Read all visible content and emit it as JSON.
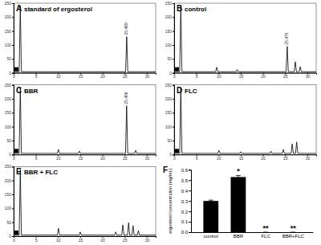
{
  "chart_data": [
    {
      "type": "line",
      "panel": "A",
      "title": "standard of ergosterol",
      "color": "#000000",
      "x": [
        0,
        1.25,
        1.5,
        1.75,
        25.22,
        25.469,
        25.72,
        32
      ],
      "values": [
        4,
        4,
        240,
        4,
        4,
        130,
        4,
        4
      ],
      "xlim": [
        0,
        32
      ],
      "xticks": [
        0,
        5,
        10,
        15,
        20,
        25,
        30
      ],
      "ylim": [
        0,
        250
      ],
      "yticks": [
        0,
        50,
        100,
        150,
        200,
        250
      ],
      "annotations": [
        {
          "text": "25.469",
          "x": 25.469,
          "y": 130
        }
      ]
    },
    {
      "type": "line",
      "panel": "B",
      "title": "control",
      "color": "#000000",
      "x": [
        0,
        1.25,
        1.5,
        1.75,
        9.35,
        9.6,
        9.85,
        13.95,
        14.2,
        14.45,
        25.22,
        25.475,
        25.72,
        27.05,
        27.3,
        27.55,
        28.15,
        28.4,
        28.65,
        32
      ],
      "values": [
        4,
        4,
        240,
        4,
        4,
        20,
        4,
        4,
        12,
        4,
        4,
        95,
        4,
        4,
        40,
        4,
        4,
        22,
        4,
        4
      ],
      "xlim": [
        0,
        32
      ],
      "xticks": [
        0,
        5,
        10,
        15,
        20,
        25,
        30
      ],
      "ylim": [
        0,
        250
      ],
      "yticks": [
        0,
        50,
        100,
        150,
        200,
        250
      ],
      "annotations": [
        {
          "text": "25.475",
          "x": 25.475,
          "y": 95
        }
      ]
    },
    {
      "type": "line",
      "panel": "C",
      "title": "BBR",
      "color": "#000000",
      "x": [
        0,
        1.25,
        1.5,
        1.75,
        9.85,
        10.1,
        10.35,
        14.55,
        14.8,
        15.05,
        25.2,
        25.456,
        25.7,
        27.25,
        27.5,
        27.75,
        32
      ],
      "values": [
        4,
        4,
        240,
        4,
        4,
        18,
        4,
        4,
        12,
        4,
        4,
        175,
        4,
        4,
        15,
        4,
        4
      ],
      "xlim": [
        0,
        32
      ],
      "xticks": [
        0,
        5,
        10,
        15,
        20,
        25,
        30
      ],
      "ylim": [
        0,
        250
      ],
      "yticks": [
        0,
        50,
        100,
        150,
        200,
        250
      ],
      "annotations": [
        {
          "text": "25.456",
          "x": 25.456,
          "y": 175
        }
      ]
    },
    {
      "type": "line",
      "panel": "D",
      "title": "FLC",
      "color": "#000000",
      "x": [
        0,
        1.25,
        1.5,
        1.75,
        9.85,
        10.1,
        10.35,
        14.75,
        15,
        15.25,
        21.55,
        21.8,
        22.05,
        24.35,
        24.6,
        24.85,
        26.35,
        26.6,
        26.85,
        27.35,
        27.6,
        27.85,
        32
      ],
      "values": [
        4,
        4,
        240,
        4,
        4,
        15,
        4,
        4,
        10,
        4,
        4,
        12,
        4,
        4,
        18,
        4,
        4,
        38,
        4,
        4,
        45,
        4,
        4
      ],
      "xlim": [
        0,
        32
      ],
      "xticks": [
        0,
        5,
        10,
        15,
        20,
        25,
        30
      ],
      "ylim": [
        0,
        250
      ],
      "yticks": [
        0,
        50,
        100,
        150,
        200,
        250
      ]
    },
    {
      "type": "line",
      "panel": "E",
      "title": "BBR + FLC",
      "color": "#000000",
      "x": [
        0,
        1.25,
        1.5,
        1.75,
        9.85,
        10.1,
        10.35,
        14.75,
        15,
        15.25,
        22.75,
        23,
        23.25,
        24.35,
        24.6,
        24.85,
        25.65,
        25.9,
        26.15,
        26.65,
        26.9,
        27.15,
        27.85,
        28.1,
        28.35,
        32
      ],
      "values": [
        4,
        4,
        240,
        4,
        4,
        28,
        4,
        4,
        15,
        4,
        4,
        15,
        4,
        4,
        40,
        4,
        4,
        48,
        4,
        4,
        38,
        4,
        4,
        20,
        4,
        4
      ],
      "xlim": [
        0,
        32
      ],
      "xticks": [
        0,
        5,
        10,
        15,
        20,
        25,
        30
      ],
      "ylim": [
        0,
        250
      ],
      "yticks": [
        0,
        50,
        100,
        150,
        200,
        250
      ]
    },
    {
      "type": "bar",
      "panel": "F",
      "color": "#000000",
      "categories": [
        "control",
        "BBR",
        "FLC",
        "BBR+FLC"
      ],
      "values": [
        0.3,
        0.53,
        0,
        0
      ],
      "errors": [
        0.008,
        0.015,
        0,
        0
      ],
      "significance": [
        null,
        "*",
        "**",
        "**"
      ],
      "y_label": "ergosterol concentration (mg/mL)",
      "ylim": [
        0,
        0.6
      ],
      "yticks": [
        {
          "value": 0,
          "label": "0.0"
        },
        0.1,
        0.2,
        0.3,
        0.4,
        0.5,
        0.6
      ]
    }
  ]
}
